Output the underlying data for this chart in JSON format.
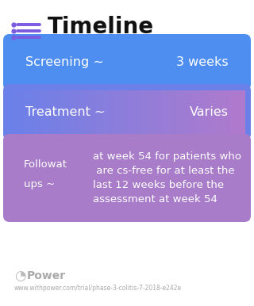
{
  "title": "Timeline",
  "background_color": "#ffffff",
  "icon_dot_color": "#7b5ce0",
  "icon_line_color": "#7b5ce0",
  "title_color": "#111111",
  "title_fontsize": 20,
  "cards": [
    {
      "type": "simple",
      "label_left": "Screening ~",
      "label_right": "3 weeks",
      "color": "#4d8ef0",
      "text_color": "#ffffff",
      "fontsize": 11.5
    },
    {
      "type": "gradient",
      "label_left": "Treatment ~",
      "label_right": "Varies",
      "color_left": "#6b80e8",
      "color_right": "#b07acc",
      "text_color": "#ffffff",
      "fontsize": 11.5
    },
    {
      "type": "multiline",
      "label_topleft": "Followat",
      "label_bottomleft": "ups ~",
      "label_right": "at week 54 for patients who\n are cs-free for at least the\nlast 12 weeks before the\nassessment at week 54",
      "color": "#a87cc8",
      "text_color": "#ffffff",
      "fontsize": 9.5
    }
  ],
  "footer_icon_color": "#bbbbbb",
  "footer_logo_text": "Power",
  "footer_url": "www.withpower.com/trial/phase-3-colitis-7-2018-e242e",
  "footer_color": "#aaaaaa",
  "footer_fontsize": 5.5,
  "footer_logo_fontsize": 10
}
